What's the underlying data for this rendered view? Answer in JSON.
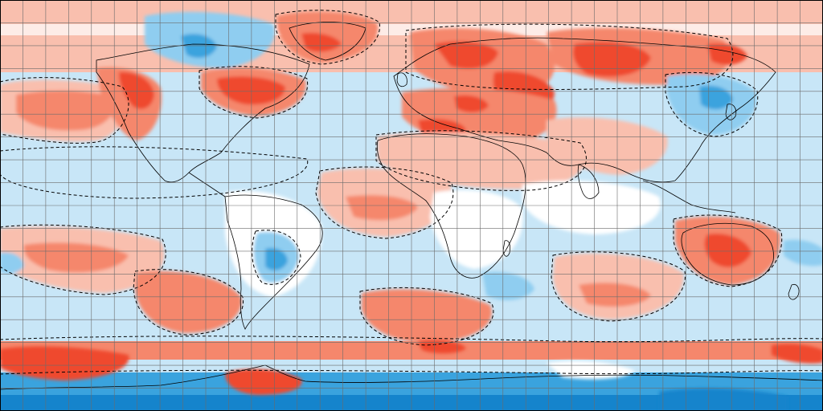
{
  "map": {
    "projection": "equirectangular",
    "extent": {
      "lon": [
        -180,
        180
      ],
      "lat": [
        -90,
        90
      ]
    },
    "graticule_step_deg": 10,
    "border": "#000000",
    "legend": "none",
    "text": "none visible",
    "contours": {
      "style": "dashed",
      "color": "#000000"
    },
    "palette": {
      "warm_strong": "#ef4a2d",
      "warm_medium": "#f5876c",
      "warm_light": "#f9bfae",
      "neutral": "#ffffff",
      "cool_light": "#c8e6f7",
      "cool_medium": "#8fcdf0",
      "cool_strong": "#3aa3de",
      "cool_darkest": "#1584cc"
    },
    "bands": [
      {
        "category": "cool_strong",
        "lat_range": [
          -90,
          -72
        ]
      },
      {
        "category": "cool_light",
        "lat_range": [
          -72,
          -62
        ]
      },
      {
        "category": "warm_medium",
        "lat_range": [
          -62,
          -40
        ]
      },
      {
        "category": "cool_light",
        "lat_range": [
          -40,
          40
        ]
      },
      {
        "category": "warm_light",
        "lat_range": [
          40,
          75
        ]
      },
      {
        "category": "warm_light",
        "lat_range": [
          75,
          90
        ]
      }
    ],
    "regions": [
      {
        "name": "south-atlantic",
        "category": "cool_light"
      },
      {
        "name": "north-pacific-warm",
        "category": "warm_medium"
      },
      {
        "name": "northeast-pacific",
        "category": "warm_strong"
      },
      {
        "name": "eastern-canada",
        "category": "warm_strong"
      },
      {
        "name": "greenland",
        "category": "warm_medium"
      },
      {
        "name": "northern-canada",
        "category": "cool_strong"
      },
      {
        "name": "scandinavia",
        "category": "warm_strong"
      },
      {
        "name": "european-russia",
        "category": "warm_strong"
      },
      {
        "name": "central-siberia",
        "category": "warm_strong"
      },
      {
        "name": "mediterranean",
        "category": "warm_medium"
      },
      {
        "name": "north-africa",
        "category": "warm_medium"
      },
      {
        "name": "middle-east",
        "category": "warm_light"
      },
      {
        "name": "east-asia",
        "category": "cool_medium"
      },
      {
        "name": "tropical-atlantic",
        "category": "warm_light"
      },
      {
        "name": "equatorial-africa",
        "category": "neutral"
      },
      {
        "name": "indian-ocean",
        "category": "cool_light"
      },
      {
        "name": "tropical-indian-ocean",
        "category": "neutral"
      },
      {
        "name": "australia",
        "category": "warm_strong"
      },
      {
        "name": "south-america",
        "category": "neutral"
      },
      {
        "name": "paraguay-brazil",
        "category": "cool_medium"
      },
      {
        "name": "south-pacific",
        "category": "warm_medium"
      },
      {
        "name": "southeast-pacific",
        "category": "warm_medium"
      },
      {
        "name": "south-atlantic-warm",
        "category": "warm_medium"
      },
      {
        "name": "southern-ocean-pacific",
        "category": "warm_strong"
      },
      {
        "name": "antarctic-peninsula",
        "category": "warm_strong"
      },
      {
        "name": "equatorial-pacific",
        "category": "cool_light"
      }
    ]
  }
}
